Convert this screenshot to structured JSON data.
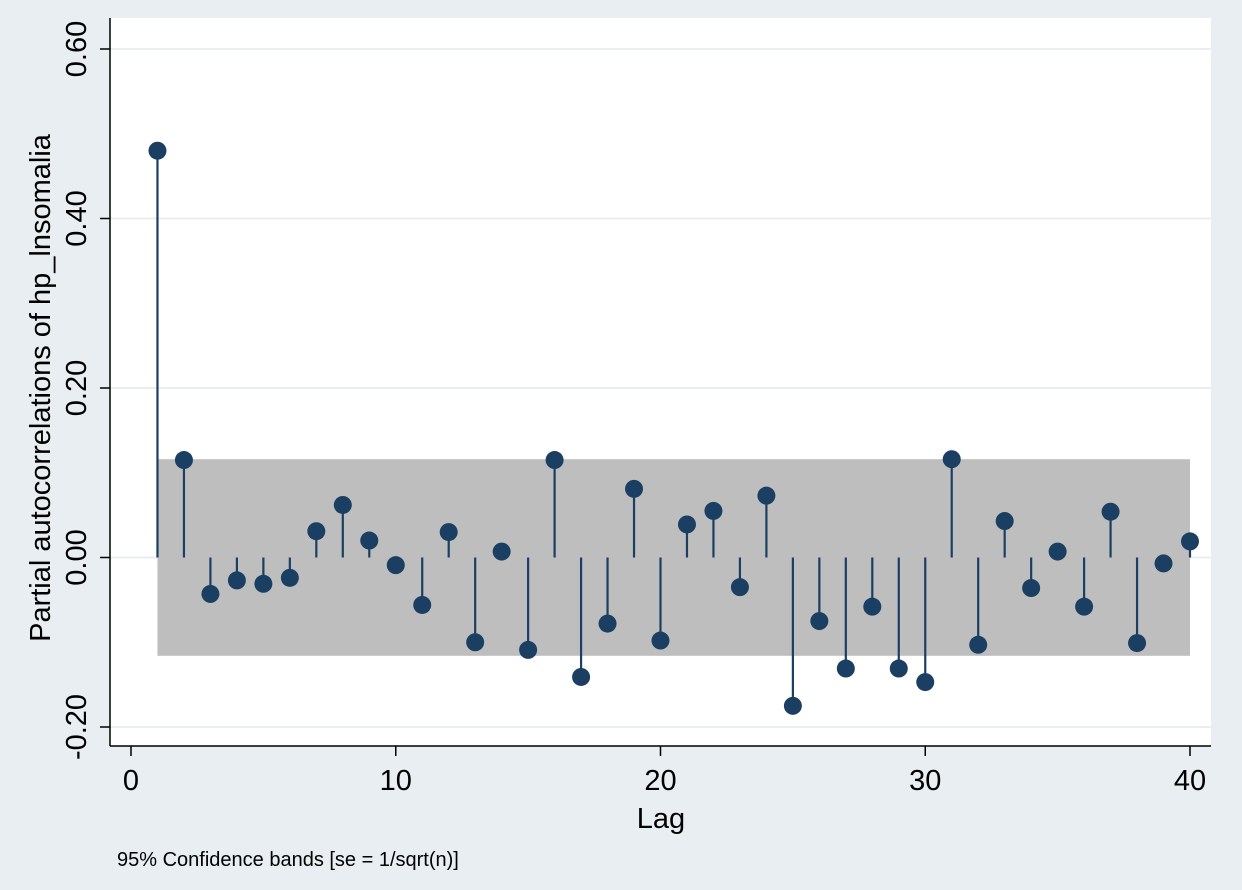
{
  "chart_data": {
    "type": "stem",
    "title": "",
    "xlabel": "Lag",
    "ylabel": "Partial autocorrelations of hp_lnsomalia",
    "note": "95% Confidence bands [se = 1/sqrt(n)]",
    "xlim": [
      0,
      40
    ],
    "ylim": [
      -0.2,
      0.6
    ],
    "x_ticks": [
      0,
      10,
      20,
      30,
      40
    ],
    "y_ticks": [
      -0.2,
      0.0,
      0.2,
      0.4,
      0.6
    ],
    "x_tick_labels": [
      "0",
      "10",
      "20",
      "30",
      "40"
    ],
    "y_tick_labels": [
      "-0.20",
      "0.00",
      "0.20",
      "0.40",
      "0.60"
    ],
    "confidence_band": {
      "lower": -0.116,
      "upper": 0.116,
      "from_lag": 1,
      "to_lag": 40
    },
    "lags": [
      1,
      2,
      3,
      4,
      5,
      6,
      7,
      8,
      9,
      10,
      11,
      12,
      13,
      14,
      15,
      16,
      17,
      18,
      19,
      20,
      21,
      22,
      23,
      24,
      25,
      26,
      27,
      28,
      29,
      30,
      31,
      32,
      33,
      34,
      35,
      36,
      37,
      38,
      39,
      40
    ],
    "values": [
      0.48,
      0.115,
      -0.043,
      -0.027,
      -0.031,
      -0.024,
      0.031,
      0.062,
      0.02,
      -0.009,
      -0.056,
      0.03,
      -0.1,
      0.007,
      -0.109,
      0.115,
      -0.141,
      -0.078,
      0.081,
      -0.098,
      0.039,
      0.055,
      -0.035,
      0.073,
      -0.175,
      -0.075,
      -0.131,
      -0.058,
      -0.131,
      -0.147,
      0.116,
      -0.103,
      0.043,
      -0.036,
      0.007,
      -0.058,
      0.054,
      -0.101,
      -0.007,
      0.019
    ]
  },
  "colors": {
    "background": "#e8eef1",
    "plot_area": "#ffffff",
    "band": "#bebebe",
    "marker": "#1b3f62",
    "grid": "#e8eef1"
  }
}
